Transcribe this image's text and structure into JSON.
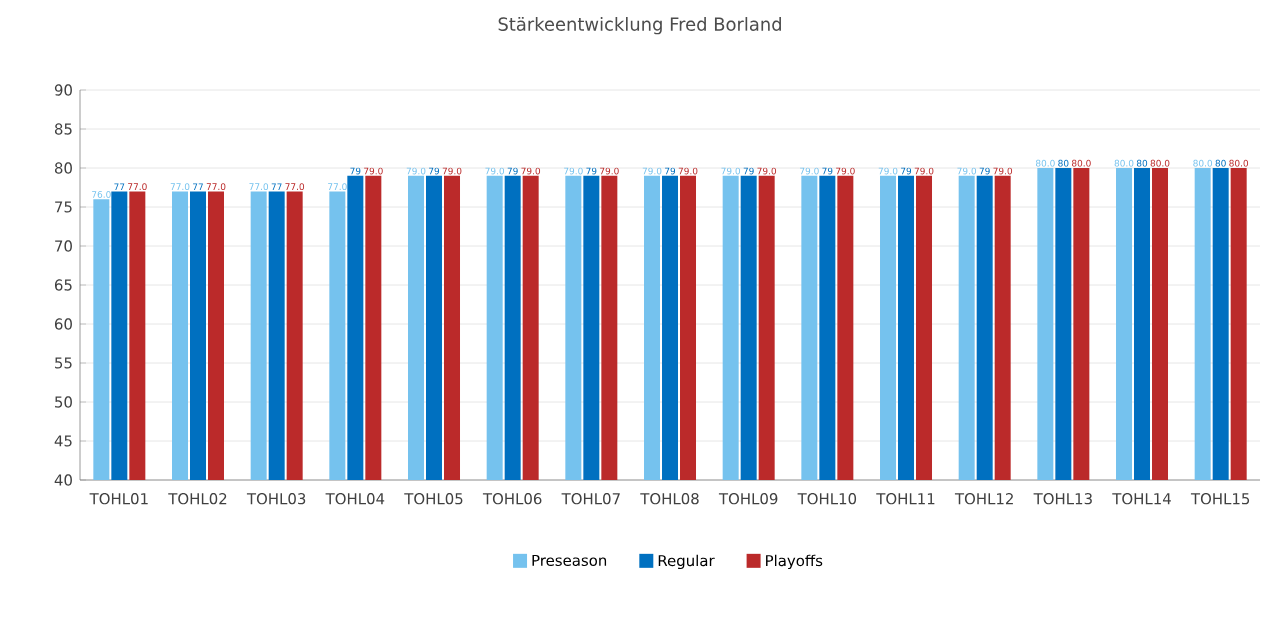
{
  "chart_data": {
    "type": "bar",
    "title": "Stärkeentwicklung Fred Borland",
    "categories": [
      "TOHL01",
      "TOHL02",
      "TOHL03",
      "TOHL04",
      "TOHL05",
      "TOHL06",
      "TOHL07",
      "TOHL08",
      "TOHL09",
      "TOHL10",
      "TOHL11",
      "TOHL12",
      "TOHL13",
      "TOHL14",
      "TOHL15"
    ],
    "series": [
      {
        "name": "Preseason",
        "color": "#75c2ee",
        "values": [
          76,
          77,
          77,
          77,
          79,
          79,
          79,
          79,
          79,
          79,
          79,
          79,
          80,
          80,
          80
        ],
        "value_labels": [
          "76.0",
          "77.0",
          "77.0",
          "77.0",
          "79.0",
          "79.0",
          "79.0",
          "79.0",
          "79.0",
          "79.0",
          "79.0",
          "79.0",
          "80.0",
          "80.0",
          "80.0"
        ]
      },
      {
        "name": "Regular",
        "color": "#0070c0",
        "values": [
          77,
          77,
          77,
          79,
          79,
          79,
          79,
          79,
          79,
          79,
          79,
          79,
          80,
          80,
          80
        ],
        "value_labels": [
          "77",
          "77",
          "77",
          "79",
          "79",
          "79",
          "79",
          "79",
          "79",
          "79",
          "79",
          "79",
          "80",
          "80",
          "80"
        ]
      },
      {
        "name": "Playoffs",
        "color": "#bb2a2a",
        "values": [
          77,
          77,
          77,
          79,
          79,
          79,
          79,
          79,
          79,
          79,
          79,
          79,
          80,
          80,
          80
        ],
        "value_labels": [
          "77.0",
          "77.0",
          "77.0",
          "79.0",
          "79.0",
          "79.0",
          "79.0",
          "79.0",
          "79.0",
          "79.0",
          "79.0",
          "79.0",
          "80.0",
          "80.0",
          "80.0"
        ]
      }
    ],
    "ylim": [
      40,
      90
    ],
    "yticks": [
      40,
      45,
      50,
      55,
      60,
      65,
      70,
      75,
      80,
      85,
      90
    ],
    "grid": "y",
    "legend": "bottom"
  }
}
